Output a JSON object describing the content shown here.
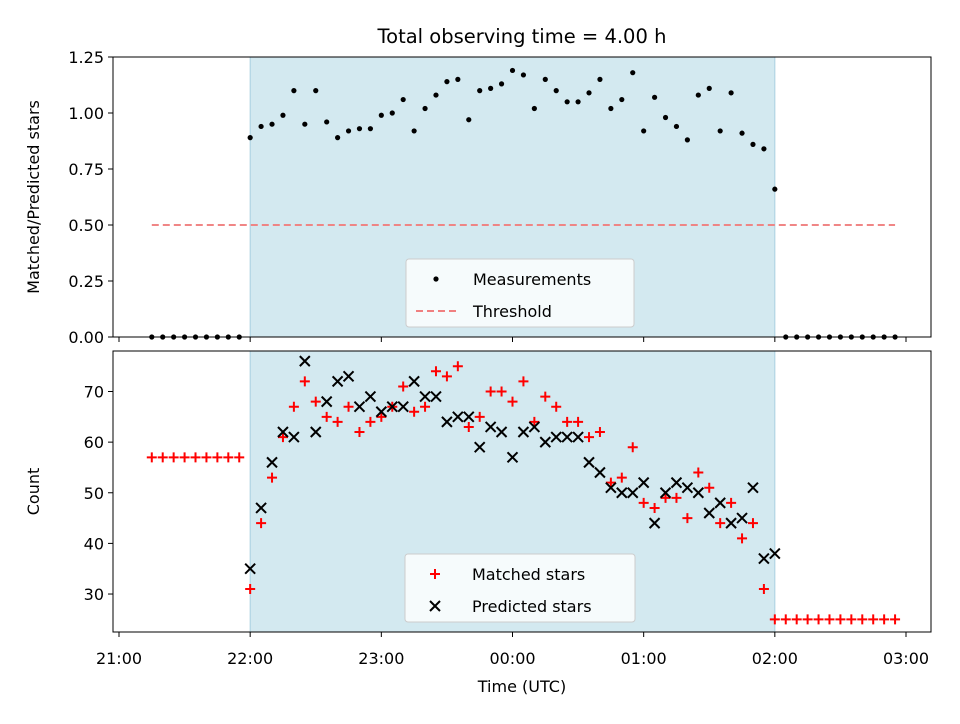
{
  "chart_data": [
    {
      "type": "scatter",
      "title": "Total observing time = 4.00 h",
      "xlabel": "",
      "ylabel": "Matched/Predicted stars",
      "xlim": [
        "21:00",
        "03:00"
      ],
      "ylim": [
        0,
        1.25
      ],
      "x_ticks": [
        "21:00",
        "22:00",
        "23:00",
        "00:00",
        "01:00",
        "02:00",
        "03:00"
      ],
      "y_ticks": [
        "0.00",
        "0.25",
        "0.50",
        "0.75",
        "1.00",
        "1.25"
      ],
      "shaded_interval": [
        "22:00",
        "02:00"
      ],
      "shade_color": "#d3e9f0",
      "legend_position": "lower-center",
      "series": [
        {
          "name": "Measurements",
          "marker": "dot",
          "color": "#000000",
          "x": [
            "21:15",
            "21:20",
            "21:25",
            "21:30",
            "21:35",
            "21:40",
            "21:45",
            "21:50",
            "21:55",
            "22:00",
            "22:05",
            "22:10",
            "22:15",
            "22:20",
            "22:25",
            "22:30",
            "22:35",
            "22:40",
            "22:45",
            "22:50",
            "22:55",
            "23:00",
            "23:05",
            "23:10",
            "23:15",
            "23:20",
            "23:25",
            "23:30",
            "23:35",
            "23:40",
            "23:45",
            "23:50",
            "23:55",
            "00:00",
            "00:05",
            "00:10",
            "00:15",
            "00:20",
            "00:25",
            "00:30",
            "00:35",
            "00:40",
            "00:45",
            "00:50",
            "00:55",
            "01:00",
            "01:05",
            "01:10",
            "01:15",
            "01:20",
            "01:25",
            "01:30",
            "01:35",
            "01:40",
            "01:45",
            "01:50",
            "01:55",
            "02:00",
            "02:05",
            "02:10",
            "02:15",
            "02:20",
            "02:25",
            "02:30",
            "02:35",
            "02:40",
            "02:45",
            "02:50",
            "02:55"
          ],
          "y": [
            0,
            0,
            0,
            0,
            0,
            0,
            0,
            0,
            0,
            0.89,
            0.94,
            0.95,
            0.99,
            1.1,
            0.95,
            1.1,
            0.96,
            0.89,
            0.92,
            0.93,
            0.93,
            0.99,
            1.0,
            1.06,
            0.92,
            1.02,
            1.08,
            1.14,
            1.15,
            0.97,
            1.1,
            1.11,
            1.13,
            1.19,
            1.17,
            1.02,
            1.15,
            1.1,
            1.05,
            1.05,
            1.09,
            1.15,
            1.02,
            1.06,
            1.18,
            0.92,
            1.07,
            0.98,
            0.94,
            0.88,
            1.08,
            1.11,
            0.92,
            1.09,
            0.91,
            0.86,
            0.84,
            0.66,
            0,
            0,
            0,
            0,
            0,
            0,
            0,
            0,
            0,
            0,
            0
          ]
        },
        {
          "name": "Threshold",
          "style": "dashed",
          "color": "#f08080",
          "x": [
            "21:15",
            "02:55"
          ],
          "y": [
            0.5,
            0.5
          ]
        }
      ]
    },
    {
      "type": "scatter",
      "title": "",
      "xlabel": "Time (UTC)",
      "ylabel": "Count",
      "xlim": [
        "21:00",
        "03:00"
      ],
      "ylim": [
        22.5,
        78
      ],
      "x_ticks": [
        "21:00",
        "22:00",
        "23:00",
        "00:00",
        "01:00",
        "02:00",
        "03:00"
      ],
      "y_ticks": [
        "30",
        "40",
        "50",
        "60",
        "70"
      ],
      "shaded_interval": [
        "22:00",
        "02:00"
      ],
      "shade_color": "#d3e9f0",
      "legend_position": "lower-center",
      "series": [
        {
          "name": "Matched stars",
          "marker": "plus",
          "color": "#ff0000",
          "x": [
            "21:15",
            "21:20",
            "21:25",
            "21:30",
            "21:35",
            "21:40",
            "21:45",
            "21:50",
            "21:55",
            "22:00",
            "22:05",
            "22:10",
            "22:15",
            "22:20",
            "22:25",
            "22:30",
            "22:35",
            "22:40",
            "22:45",
            "22:50",
            "22:55",
            "23:00",
            "23:05",
            "23:10",
            "23:15",
            "23:20",
            "23:25",
            "23:30",
            "23:35",
            "23:40",
            "23:45",
            "23:50",
            "23:55",
            "00:00",
            "00:05",
            "00:10",
            "00:15",
            "00:20",
            "00:25",
            "00:30",
            "00:35",
            "00:40",
            "00:45",
            "00:50",
            "00:55",
            "01:00",
            "01:05",
            "01:10",
            "01:15",
            "01:20",
            "01:25",
            "01:30",
            "01:35",
            "01:40",
            "01:45",
            "01:50",
            "01:55",
            "02:00",
            "02:05",
            "02:10",
            "02:15",
            "02:20",
            "02:25",
            "02:30",
            "02:35",
            "02:40",
            "02:45",
            "02:50",
            "02:55"
          ],
          "y": [
            57,
            57,
            57,
            57,
            57,
            57,
            57,
            57,
            57,
            31,
            44,
            53,
            61,
            67,
            72,
            68,
            65,
            64,
            67,
            62,
            64,
            65,
            67,
            71,
            66,
            67,
            74,
            73,
            75,
            63,
            65,
            70,
            70,
            68,
            72,
            64,
            69,
            67,
            64,
            64,
            61,
            62,
            52,
            53,
            59,
            48,
            47,
            49,
            49,
            45,
            54,
            51,
            44,
            48,
            41,
            44,
            31,
            25,
            25,
            25,
            25,
            25,
            25,
            25,
            25,
            25,
            25,
            25,
            25
          ]
        },
        {
          "name": "Predicted stars",
          "marker": "x",
          "color": "#000000",
          "x": [
            "22:00",
            "22:05",
            "22:10",
            "22:15",
            "22:20",
            "22:25",
            "22:30",
            "22:35",
            "22:40",
            "22:45",
            "22:50",
            "22:55",
            "23:00",
            "23:05",
            "23:10",
            "23:15",
            "23:20",
            "23:25",
            "23:30",
            "23:35",
            "23:40",
            "23:45",
            "23:50",
            "23:55",
            "00:00",
            "00:05",
            "00:10",
            "00:15",
            "00:20",
            "00:25",
            "00:30",
            "00:35",
            "00:40",
            "00:45",
            "00:50",
            "00:55",
            "01:00",
            "01:05",
            "01:10",
            "01:15",
            "01:20",
            "01:25",
            "01:30",
            "01:35",
            "01:40",
            "01:45",
            "01:50",
            "01:55",
            "02:00"
          ],
          "y": [
            35,
            47,
            56,
            62,
            61,
            76,
            62,
            68,
            72,
            73,
            67,
            69,
            66,
            67,
            67,
            72,
            69,
            69,
            64,
            65,
            65,
            59,
            63,
            62,
            57,
            62,
            63,
            60,
            61,
            61,
            61,
            56,
            54,
            51,
            50,
            50,
            52,
            44,
            50,
            52,
            51,
            50,
            46,
            48,
            44,
            45,
            51,
            37,
            38
          ]
        }
      ]
    }
  ]
}
